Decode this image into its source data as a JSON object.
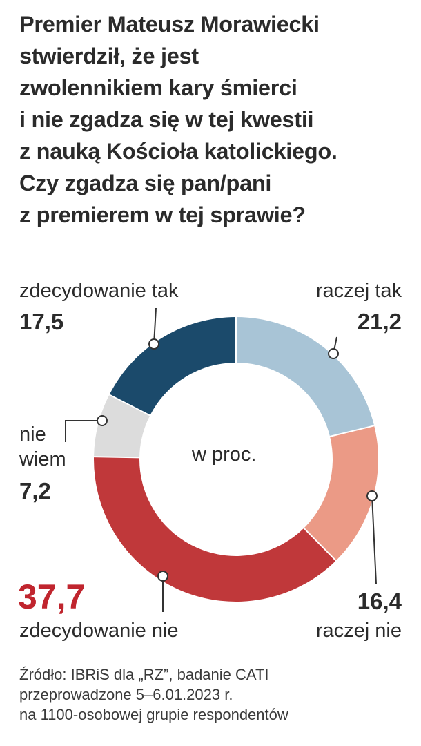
{
  "title_lines": [
    "Premier Mateusz Morawiecki",
    "stwierdził, że jest",
    "zwolennikiem kary śmierci",
    "i nie zgadza się w tej kwestii",
    "z nauką Kościoła katolickiego.",
    "Czy zgadza się pan/pani",
    "z premierem w tej sprawie?"
  ],
  "source_lines": [
    "Źródło: IBRiS dla „RZ”, badanie CATI",
    "przeprowadzone 5–6.01.2023 r.",
    "na 1100-osobowej grupie respondentów"
  ],
  "chart_data": {
    "type": "pie",
    "donut": true,
    "center_label": "w proc.",
    "slices": [
      {
        "label": "raczej tak",
        "value": 21.2,
        "value_text": "21,2",
        "color": "#a8c4d6"
      },
      {
        "label": "raczej nie",
        "value": 16.4,
        "value_text": "16,4",
        "color": "#eb9a86"
      },
      {
        "label": "zdecydowanie nie",
        "value": 37.7,
        "value_text": "37,7",
        "color": "#c0383a"
      },
      {
        "label": "nie wiem",
        "value": 7.2,
        "value_text": "7,2",
        "color": "#dcdcdc"
      },
      {
        "label": "zdecydowanie tak",
        "value": 17.5,
        "value_text": "17,5",
        "color": "#1b4a6b"
      }
    ],
    "label_split": {
      "nie wiem": [
        "nie",
        "wiem"
      ]
    },
    "highlight_color": "#c0252e"
  }
}
